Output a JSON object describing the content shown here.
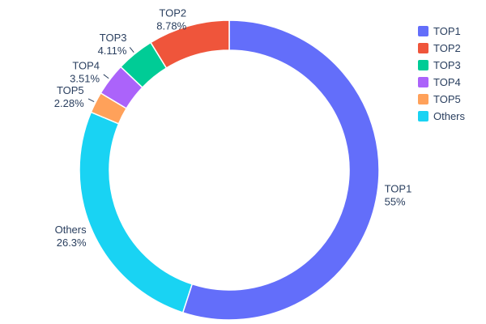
{
  "chart_data": {
    "type": "pie",
    "subtype": "donut",
    "hole": 0.8,
    "direction": "clockwise",
    "start_angle_deg": 0,
    "labels": [
      "TOP1",
      "TOP2",
      "TOP3",
      "TOP4",
      "TOP5",
      "Others"
    ],
    "values": [
      55,
      8.78,
      4.11,
      3.51,
      2.28,
      26.3
    ],
    "display_pcts": [
      "55%",
      "8.78%",
      "4.11%",
      "3.51%",
      "2.28%",
      "26.3%"
    ],
    "colors": [
      "#636efa",
      "#ef553b",
      "#00cc96",
      "#ab63fa",
      "#ffa15a",
      "#19d3f3"
    ],
    "clockwise_order": [
      0,
      5,
      4,
      3,
      2,
      1
    ],
    "title": "",
    "background": "#ffffff",
    "text_color": "#2a3f5f",
    "legend": {
      "position": "top-right",
      "entries": [
        "TOP1",
        "TOP2",
        "TOP3",
        "TOP4",
        "TOP5",
        "Others"
      ]
    }
  }
}
